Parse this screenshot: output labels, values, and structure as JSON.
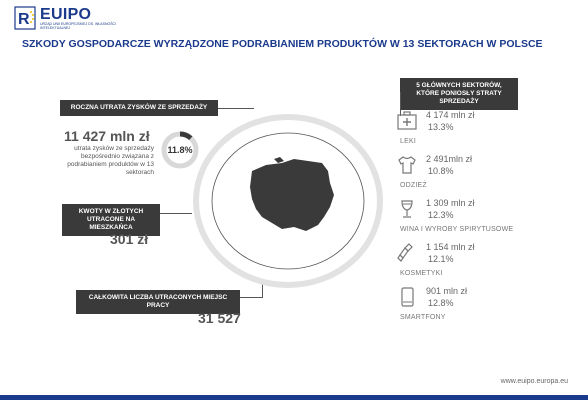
{
  "header": {
    "logo_name": "EUIPO",
    "logo_sub": "URZĄD UNII EUROPEJSKIEJ DS. WŁASNOŚCI INTELEKTUALNEJ",
    "logo_icon": "eu-stars-emblem-icon"
  },
  "title": "SZKODY GOSPODARCZE WYRZĄDZONE PODRABIANIEM PRODUKTÓW W 13 SEKTORACH W POLSCE",
  "annual_loss": {
    "label": "ROCZNA UTRATA ZYSKÓW ZE SPRZEDAŻY",
    "value": "11 427 mln zł",
    "description": "utrata zysków ze sprzedaży bezpośrednio związana z podrabianiem produktów w 13 sektorach",
    "percent_text": "11.8%",
    "percent": 11.8,
    "donut_color": "#3a3a3a",
    "donut_track_color": "#d8d8d8"
  },
  "per_capita": {
    "label": "KWOTY W ZŁOTYCH UTRACONE NA MIESZKAŃCA",
    "value": "301 zł"
  },
  "jobs": {
    "label": "CAŁKOWITA LICZBA UTRACONYCH MIEJSC PRACY",
    "value": "31 527"
  },
  "sectors_label": "5 GŁÓWNYCH SEKTORÓW, KTÓRE PONIOSŁY STRATY SPRZEDAŻY",
  "sectors": [
    {
      "icon": "first-aid-kit-icon",
      "value": "4 174 mln zł",
      "percent": "13.3%",
      "name": "LEKI"
    },
    {
      "icon": "tshirt-icon",
      "value": "2 491mln zł",
      "percent": "10.8%",
      "name": "ODZIEŻ"
    },
    {
      "icon": "wine-glass-icon",
      "value": "1 309 mln zł",
      "percent": "12.3%",
      "name": "WINA I WYROBY SPIRYTUSOWE"
    },
    {
      "icon": "lipstick-icon",
      "value": "1 154 mln zł",
      "percent": "12.1%",
      "name": "KOSMETYKI"
    },
    {
      "icon": "smartphone-icon",
      "value": "901 mln zł",
      "percent": "12.8%",
      "name": "SMARTFONY"
    }
  ],
  "map_icon": "poland-map-icon",
  "footer_url": "www.euipo.europa.eu",
  "colors": {
    "brand_blue": "#1b3a8c",
    "label_bg": "#3a3a3a",
    "map_fill": "#3a3a3a"
  }
}
